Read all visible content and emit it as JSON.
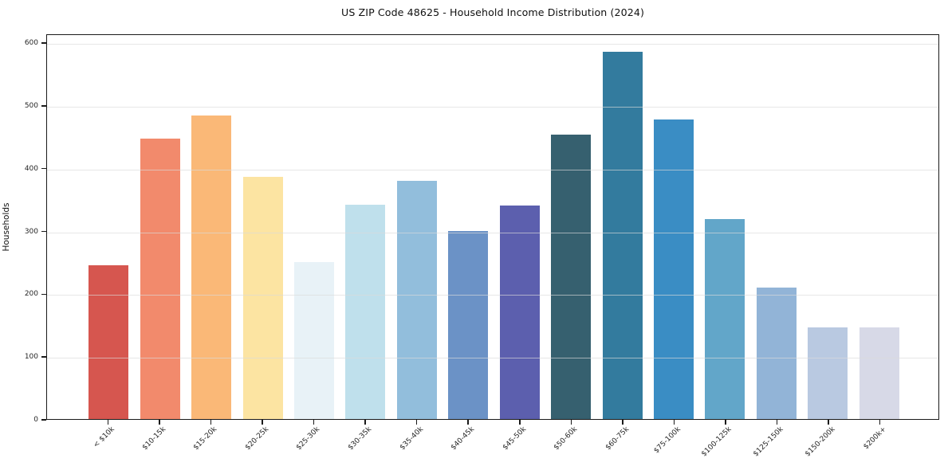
{
  "title": "US ZIP Code 48625 - Household Income Distribution (2024)",
  "chart_data": {
    "type": "bar",
    "title": "US ZIP Code 48625 - Household Income Distribution (2024)",
    "xlabel": "",
    "ylabel": "Households",
    "categories": [
      "< $10k",
      "$10-15k",
      "$15-20k",
      "$20-25k",
      "$25-30k",
      "$30-35k",
      "$35-40k",
      "$40-45k",
      "$45-50k",
      "$50-60k",
      "$60-75k",
      "$75-100k",
      "$100-125k",
      "$125-150k",
      "$150-200k",
      "$200k+"
    ],
    "values": [
      245,
      446,
      483,
      386,
      250,
      341,
      379,
      300,
      340,
      453,
      585,
      477,
      318,
      209,
      146,
      146
    ],
    "bar_colors": [
      "#d6564f",
      "#f28a6c",
      "#fab877",
      "#fce4a2",
      "#e8f2f7",
      "#bfe0ec",
      "#92bedc",
      "#6b92c6",
      "#5c5fae",
      "#36606f",
      "#337b9e",
      "#3a8dc4",
      "#62a6c9",
      "#92b4d7",
      "#b9c9e1",
      "#d7d9e7"
    ],
    "ylim": [
      0,
      614
    ],
    "yticks": [
      0,
      100,
      200,
      300,
      400,
      500,
      600
    ],
    "grid": "horizontal",
    "grid_color": "#e5e5e5",
    "legend": "none",
    "frame": "full-box",
    "x_tick_rotation_deg": 45
  }
}
